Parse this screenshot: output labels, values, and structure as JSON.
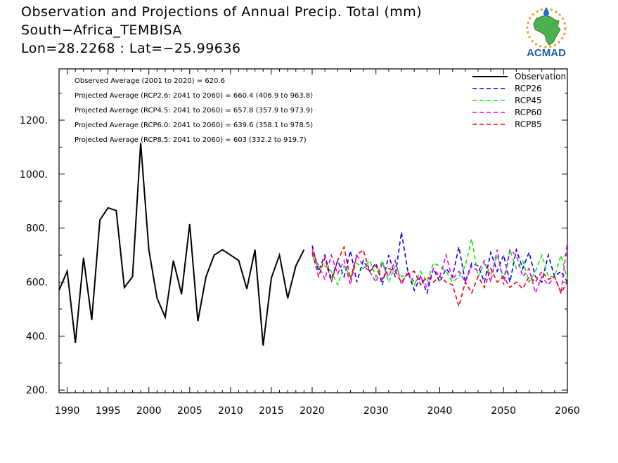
{
  "title": {
    "line1": "Observation and Projections of Annual Precip. Total (mm)",
    "line2": "South−Africa_TEMBISA",
    "line3": "Lon=28.2268 : Lat=−25.99636"
  },
  "logo": {
    "text": "ACMAD",
    "icon": "africa-map-sun-logo",
    "colors": {
      "africa": "#4caf50",
      "text": "#1f5fa8",
      "sun": "#f0a020",
      "drop": "#1f6fd0"
    }
  },
  "annotations": [
    "Observed Average (2001 to 2020) = 620.6",
    "Projected Average (RCP2.6: 2041 to 2060) = 660.4 (406.9 to 963.8)",
    "Projected Average (RCP4.5: 2041 to 2060) = 657.8 (357.9 to 973.9)",
    "Projected Average (RCP6.0: 2041 to 2060) = 639.6 (358.1 to 978.5)",
    "Projected Average (RCP8.5: 2041 to 2060) = 603 (332.2 to 919.7)"
  ],
  "chart_data": {
    "type": "line",
    "ylim": [
      190,
      1390
    ],
    "y_ticks": [
      200,
      400,
      600,
      800,
      1000,
      1200
    ],
    "y_tick_labels": [
      "200.",
      "400.",
      "600.",
      "800.",
      "1000.",
      "1200."
    ],
    "x_ticks_observed": [
      1990,
      1995,
      2000,
      2005,
      2010,
      2015,
      2020
    ],
    "x_ticks_projected": [
      2020,
      2030,
      2040,
      2050,
      2060
    ],
    "x_axis_break": "compressed 1989–2020, expanded 2020–2060",
    "legend_position": "top-right",
    "grid": false,
    "series": [
      {
        "name": "Observation",
        "color": "#000000",
        "style": "solid",
        "x": [
          1989,
          1990,
          1991,
          1992,
          1993,
          1994,
          1995,
          1996,
          1997,
          1998,
          1999,
          2000,
          2001,
          2002,
          2003,
          2004,
          2005,
          2006,
          2007,
          2008,
          2009,
          2010,
          2011,
          2012,
          2013,
          2014,
          2015,
          2016,
          2017,
          2018,
          2019
        ],
        "values": [
          570,
          640,
          375,
          690,
          460,
          830,
          875,
          865,
          580,
          620,
          1115,
          720,
          540,
          470,
          680,
          555,
          815,
          455,
          620,
          700,
          720,
          700,
          680,
          575,
          720,
          365,
          615,
          700,
          540,
          660,
          720
        ]
      },
      {
        "name": "RCP26",
        "color": "#0000ee",
        "style": "dashed",
        "x": [
          2020,
          2021,
          2022,
          2023,
          2024,
          2025,
          2026,
          2027,
          2028,
          2029,
          2030,
          2031,
          2032,
          2033,
          2034,
          2035,
          2036,
          2037,
          2038,
          2039,
          2040,
          2041,
          2042,
          2043,
          2044,
          2045,
          2046,
          2047,
          2048,
          2049,
          2050,
          2051,
          2052,
          2053,
          2054,
          2055,
          2056,
          2057,
          2058,
          2059,
          2060
        ],
        "values": [
          735,
          640,
          700,
          610,
          680,
          620,
          715,
          600,
          680,
          640,
          670,
          590,
          700,
          620,
          785,
          640,
          570,
          620,
          560,
          650,
          600,
          650,
          620,
          730,
          600,
          670,
          660,
          600,
          710,
          640,
          700,
          600,
          720,
          650,
          710,
          620,
          600,
          700,
          620,
          640,
          600
        ]
      },
      {
        "name": "RCP45",
        "color": "#00ee00",
        "style": "dashed",
        "x": [
          2020,
          2021,
          2022,
          2023,
          2024,
          2025,
          2026,
          2027,
          2028,
          2029,
          2030,
          2031,
          2032,
          2033,
          2034,
          2035,
          2036,
          2037,
          2038,
          2039,
          2040,
          2041,
          2042,
          2043,
          2044,
          2045,
          2046,
          2047,
          2048,
          2049,
          2050,
          2051,
          2052,
          2053,
          2054,
          2055,
          2056,
          2057,
          2058,
          2059,
          2060
        ],
        "values": [
          700,
          650,
          660,
          640,
          590,
          660,
          620,
          670,
          650,
          680,
          620,
          680,
          600,
          660,
          620,
          630,
          590,
          640,
          600,
          670,
          660,
          640,
          600,
          620,
          660,
          760,
          620,
          670,
          630,
          700,
          610,
          720,
          650,
          680,
          600,
          640,
          700,
          620,
          620,
          700,
          610
        ]
      },
      {
        "name": "RCP60",
        "color": "#ee00ee",
        "style": "dashed",
        "x": [
          2020,
          2021,
          2022,
          2023,
          2024,
          2025,
          2026,
          2027,
          2028,
          2029,
          2030,
          2031,
          2032,
          2033,
          2034,
          2035,
          2036,
          2037,
          2038,
          2039,
          2040,
          2041,
          2042,
          2043,
          2044,
          2045,
          2046,
          2047,
          2048,
          2049,
          2050,
          2051,
          2052,
          2053,
          2054,
          2055,
          2056,
          2057,
          2058,
          2059,
          2060
        ],
        "values": [
          720,
          660,
          610,
          700,
          630,
          680,
          590,
          700,
          660,
          640,
          600,
          670,
          620,
          680,
          590,
          640,
          600,
          620,
          580,
          650,
          620,
          700,
          610,
          640,
          600,
          660,
          640,
          680,
          600,
          720,
          590,
          720,
          700,
          620,
          650,
          560,
          620,
          590,
          620,
          560,
          750
        ]
      },
      {
        "name": "RCP85",
        "color": "#ee0000",
        "style": "dashed",
        "x": [
          2020,
          2021,
          2022,
          2023,
          2024,
          2025,
          2026,
          2027,
          2028,
          2029,
          2030,
          2031,
          2032,
          2033,
          2034,
          2035,
          2036,
          2037,
          2038,
          2039,
          2040,
          2041,
          2042,
          2043,
          2044,
          2045,
          2046,
          2047,
          2048,
          2049,
          2050,
          2051,
          2052,
          2053,
          2054,
          2055,
          2056,
          2057,
          2058,
          2059,
          2060
        ],
        "values": [
          710,
          620,
          690,
          600,
          680,
          730,
          610,
          700,
          720,
          640,
          660,
          610,
          650,
          640,
          600,
          630,
          640,
          590,
          620,
          600,
          620,
          600,
          590,
          510,
          600,
          560,
          620,
          580,
          650,
          600,
          620,
          580,
          600,
          575,
          620,
          600,
          640,
          610,
          620,
          560,
          600
        ]
      }
    ]
  }
}
